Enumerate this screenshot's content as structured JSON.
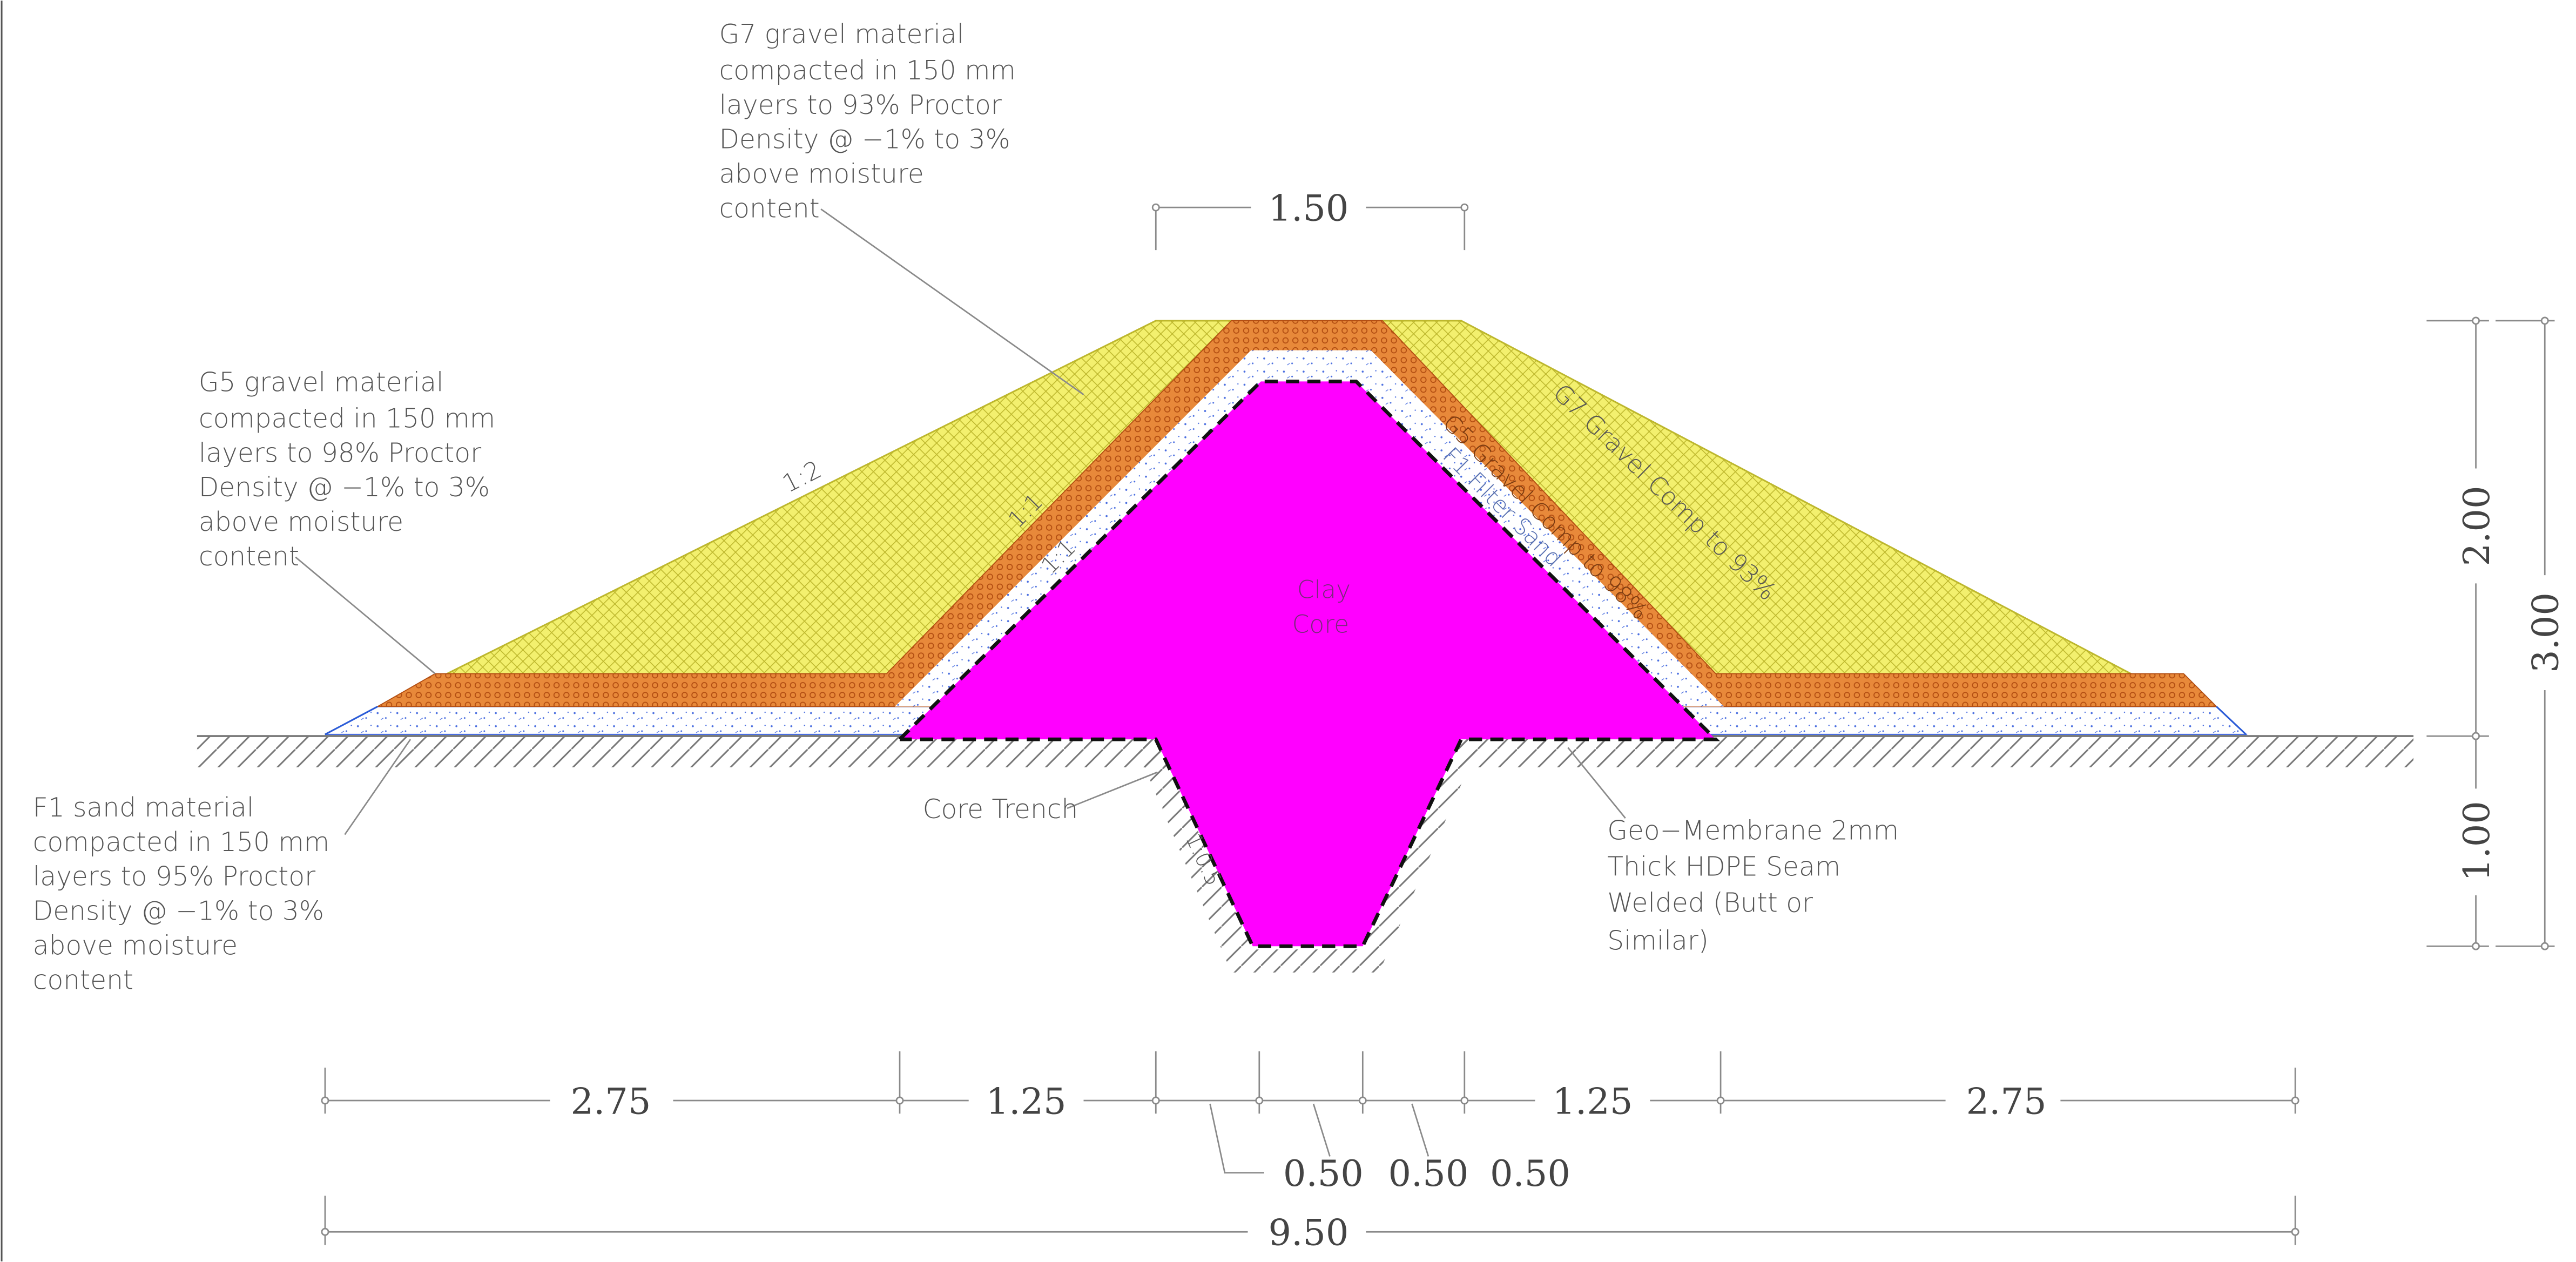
{
  "notes": {
    "g7_material": [
      "G7 gravel material",
      "compacted in 150 mm",
      "layers to 93% Proctor",
      "Density @ −1% to 3%",
      "above moisture",
      "content"
    ],
    "g5_material": [
      "G5 gravel material",
      "compacted in 150 mm",
      "layers to 98% Proctor",
      "Density @ −1% to 3%",
      "above moisture",
      "content"
    ],
    "f1_material": [
      "F1 sand material",
      "compacted in 150 mm",
      "layers to 95% Proctor",
      "Density @ −1% to 3%",
      "above moisture",
      "content"
    ],
    "geomembrane": [
      "Geo−Membrane 2mm",
      "Thick HDPE Seam",
      "Welded (Butt or",
      "Similar)"
    ],
    "core_trench": "Core Trench",
    "clay_core": [
      "Clay",
      "Core"
    ]
  },
  "slope_labels": {
    "outer": "1:2",
    "g5_layer": "1:1",
    "filter_layer": "1:1",
    "trench": "1:0.5"
  },
  "layer_labels": {
    "g7_right": "G7 Gravel Comp to 93%",
    "g5_right": "G5 Gravel Comp to 98%",
    "f1_right": "F1 Filter Sand"
  },
  "dimensions": {
    "top_width": "1.50",
    "upper_height": "2.00",
    "total_height": "3.00",
    "trench_depth": "1.00",
    "bottom_segments": [
      "2.75",
      "1.25",
      "1.25",
      "2.75"
    ],
    "center_segments": [
      "0.50",
      "0.50",
      "0.50"
    ],
    "overall_width": "9.50"
  },
  "colors": {
    "g7_gravel": "#f3f06e",
    "g5_gravel": "#e8893a",
    "f1_sand": "#ffffff",
    "clay_core": "#ff00ff",
    "membrane": "#111111",
    "ground_hatch": "#777777"
  }
}
